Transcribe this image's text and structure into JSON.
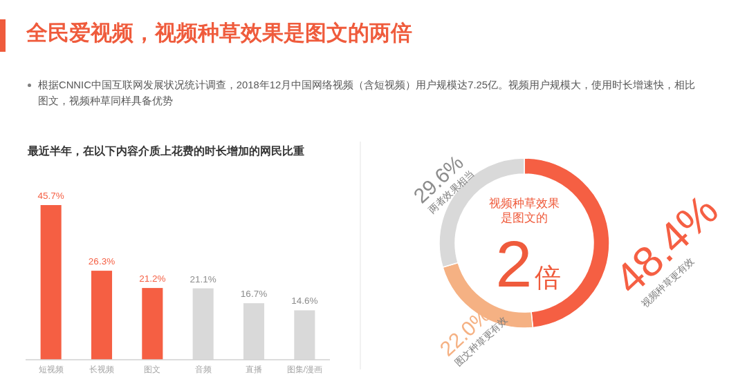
{
  "chart_data": [
    {
      "type": "other",
      "title": "全民爱视频，视频种草效果是图文的两倍",
      "subtitle": "根据CNNIC中国互联网发展状况统计调查，2018年12月中国网络视频（含短视频）用户规模达7.25亿。视频用户规模大，使用时长增速快，相比图文，视频种草同样具备优势"
    },
    {
      "type": "bar",
      "title": "最近半年，在以下内容介质上花费的时长增加的网民比重",
      "categories": [
        "短视频",
        "长视频",
        "图文",
        "音频",
        "直播",
        "图集/漫画"
      ],
      "values": [
        45.7,
        26.3,
        21.2,
        21.1,
        16.7,
        14.6
      ],
      "colors": [
        "#f55f43",
        "#f55f43",
        "#f55f43",
        "#d9d9d9",
        "#d9d9d9",
        "#d9d9d9"
      ],
      "value_labels": [
        "45.7%",
        "26.3%",
        "21.2%",
        "21.1%",
        "16.7%",
        "14.6%"
      ]
    },
    {
      "type": "donut",
      "categories": [
        "视频种草更有效",
        "图文种草更有效",
        "两者效果相当"
      ],
      "values": [
        48.4,
        22.0,
        29.6
      ],
      "colors": [
        "#f55f43",
        "#f5b183",
        "#d9d9d9"
      ],
      "value_labels": [
        "48.4%",
        "22.0%",
        "29.6%"
      ],
      "annotations": [
        "视频种草效果是图文的",
        "2倍"
      ]
    }
  ]
}
